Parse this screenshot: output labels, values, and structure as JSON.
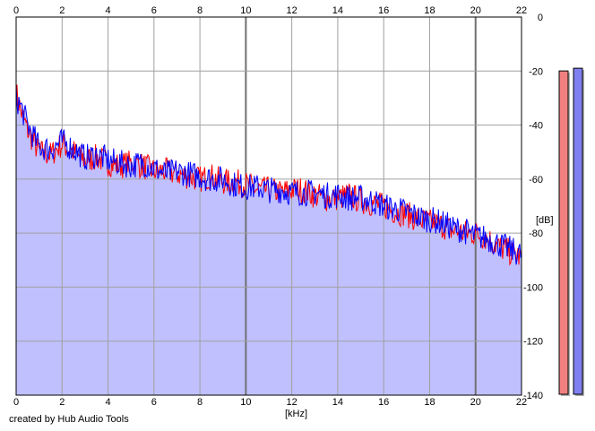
{
  "credit": "created by Hub Audio Tools",
  "chart_data": {
    "type": "area",
    "xlabel": "[kHz]",
    "ylabel": "[dB]",
    "xlim": [
      0,
      22
    ],
    "ylim": [
      -140,
      0
    ],
    "x_ticks": [
      "0",
      "2",
      "4",
      "6",
      "8",
      "10",
      "12",
      "14",
      "16",
      "18",
      "20",
      "22"
    ],
    "y_ticks": [
      "0",
      "-20",
      "-40",
      "-60",
      "-80",
      "-100",
      "-120",
      "-140"
    ],
    "grid": true,
    "x": [
      0,
      0.25,
      0.5,
      0.75,
      1,
      1.5,
      2,
      2.5,
      3,
      3.5,
      4,
      4.5,
      5,
      5.5,
      6,
      6.5,
      7,
      7.5,
      8,
      8.5,
      9,
      9.5,
      10,
      10.5,
      11,
      11.5,
      12,
      12.5,
      13,
      13.5,
      14,
      14.5,
      15,
      15.5,
      16,
      16.5,
      17,
      17.5,
      18,
      18.5,
      19,
      19.5,
      20,
      20.5,
      21,
      21.5,
      22
    ],
    "series": [
      {
        "color": "#ff0000",
        "values": [
          -28,
          -36,
          -42,
          -46,
          -50,
          -51,
          -47,
          -50,
          -53,
          -52,
          -54,
          -55,
          -54,
          -55,
          -57,
          -57,
          -58,
          -59,
          -60,
          -59,
          -61,
          -61,
          -62,
          -64,
          -64,
          -65,
          -64,
          -64,
          -66,
          -67,
          -67,
          -66,
          -68,
          -69,
          -70,
          -72,
          -73,
          -75,
          -76,
          -77,
          -79,
          -80,
          -80,
          -82,
          -85,
          -87,
          -89
        ]
      },
      {
        "color": "#0000ff",
        "values": [
          -30,
          -34,
          -40,
          -44,
          -48,
          -49,
          -46,
          -49,
          -52,
          -51,
          -53,
          -54,
          -55,
          -54,
          -56,
          -58,
          -57,
          -58,
          -59,
          -60,
          -60,
          -62,
          -63,
          -63,
          -64,
          -64,
          -65,
          -65,
          -65,
          -66,
          -66,
          -67,
          -67,
          -68,
          -70,
          -71,
          -72,
          -74,
          -75,
          -76,
          -78,
          -79,
          -81,
          -82,
          -84,
          -86,
          -88
        ]
      }
    ],
    "noise_amplitude_db": 5,
    "level_meters": [
      {
        "channel": "left",
        "color": "#f08080",
        "level_db": -10
      },
      {
        "channel": "right",
        "color": "#8080f0",
        "level_db": -9
      }
    ]
  }
}
